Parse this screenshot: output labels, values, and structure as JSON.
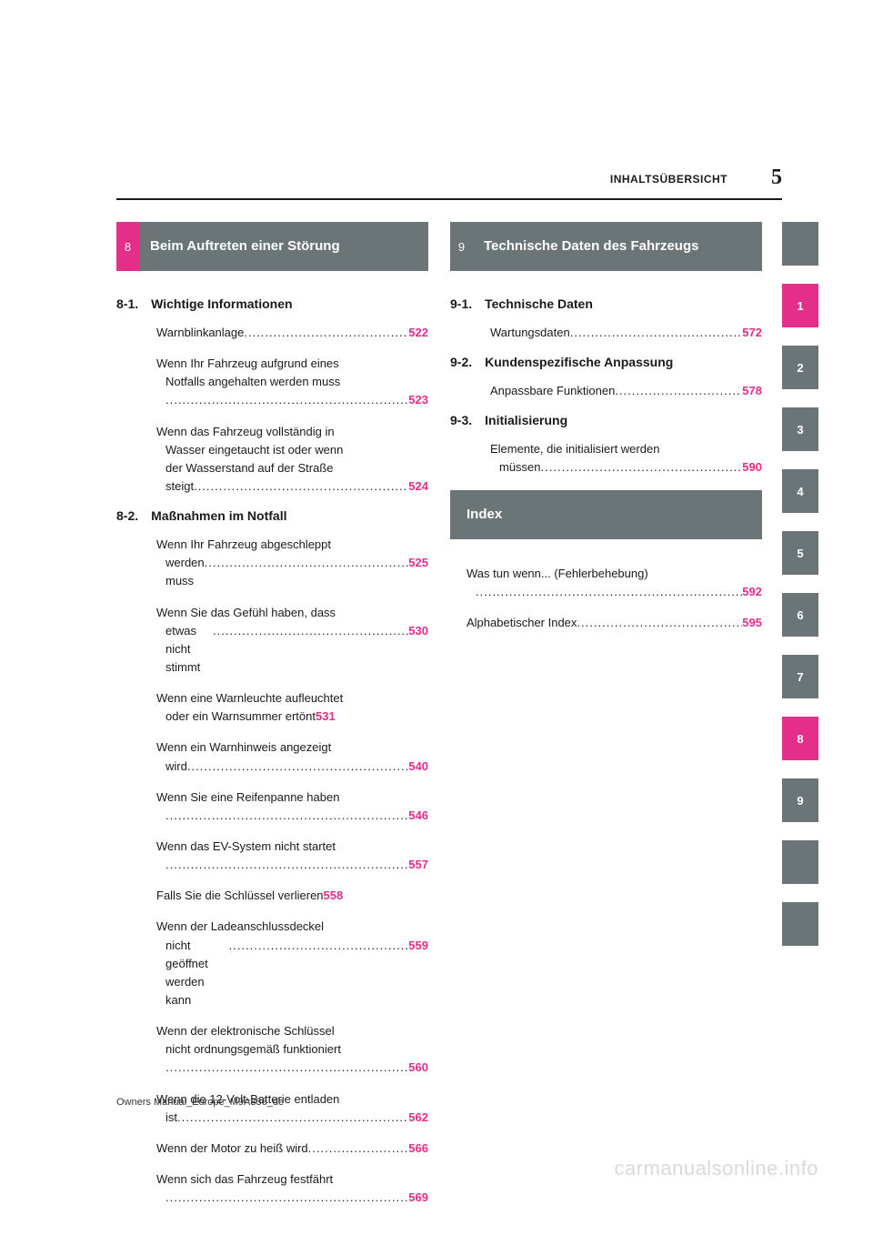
{
  "colors": {
    "accent": "#e52d8a",
    "grey": "#6b7476",
    "text": "#1a1a1a",
    "watermark": "#d9d9d9",
    "background": "#ffffff"
  },
  "header": {
    "title": "INHALTSÜBERSICHT",
    "page_number": "5"
  },
  "sections": [
    {
      "num": "8",
      "num_bg": "accent",
      "title": "Beim Auftreten einer Störung",
      "subsections": [
        {
          "num": "8-1.",
          "title": "Wichtige Informationen",
          "entries": [
            {
              "lines": [
                "Warnblinkanlage"
              ],
              "page": "522"
            },
            {
              "lines": [
                "Wenn Ihr Fahrzeug aufgrund eines",
                "Notfalls angehalten werden muss",
                ""
              ],
              "page": "523"
            },
            {
              "lines": [
                "Wenn das Fahrzeug vollständig in",
                "Wasser eingetaucht ist oder wenn",
                "der Wasserstand auf der Straße",
                "steigt"
              ],
              "page": "524"
            }
          ]
        },
        {
          "num": "8-2.",
          "title": "Maßnahmen im Notfall",
          "entries": [
            {
              "lines": [
                "Wenn Ihr Fahrzeug abgeschleppt",
                "werden muss"
              ],
              "page": "525"
            },
            {
              "lines": [
                "Wenn Sie das Gefühl haben, dass",
                "etwas nicht stimmt"
              ],
              "page": "530"
            },
            {
              "lines": [
                "Wenn eine Warnleuchte aufleuchtet",
                "oder ein Warnsummer ertönt"
              ],
              "page": "531",
              "tight": true
            },
            {
              "lines": [
                "Wenn ein Warnhinweis angezeigt",
                "wird"
              ],
              "page": "540"
            },
            {
              "lines": [
                "Wenn Sie eine Reifenpanne haben",
                ""
              ],
              "page": "546"
            },
            {
              "lines": [
                "Wenn das EV-System nicht startet",
                ""
              ],
              "page": "557"
            },
            {
              "lines": [
                "Falls Sie die Schlüssel verlieren"
              ],
              "page": "558",
              "tight": true
            },
            {
              "lines": [
                "Wenn der Ladeanschlussdeckel",
                "nicht geöffnet werden kann"
              ],
              "page": "559"
            },
            {
              "lines": [
                "Wenn der elektronische Schlüssel",
                "nicht ordnungsgemäß funktioniert",
                ""
              ],
              "page": "560"
            },
            {
              "lines": [
                "Wenn die 12-Volt-Batterie entladen",
                "ist"
              ],
              "page": "562"
            },
            {
              "lines": [
                "Wenn der Motor zu heiß wird"
              ],
              "page": "566"
            },
            {
              "lines": [
                "Wenn sich das Fahrzeug festfährt",
                ""
              ],
              "page": "569"
            }
          ]
        }
      ]
    },
    {
      "num": "9",
      "num_bg": "grey",
      "title": "Technische Daten des Fahrzeugs",
      "subsections": [
        {
          "num": "9-1.",
          "title": "Technische Daten",
          "entries": [
            {
              "lines": [
                "Wartungsdaten"
              ],
              "page": "572"
            }
          ]
        },
        {
          "num": "9-2.",
          "title": "Kundenspezifische Anpassung",
          "entries": [
            {
              "lines": [
                "Anpassbare Funktionen"
              ],
              "page": "578"
            }
          ]
        },
        {
          "num": "9-3.",
          "title": "Initialisierung",
          "entries": [
            {
              "lines": [
                "Elemente, die initialisiert werden",
                "müssen"
              ],
              "page": "590"
            }
          ]
        }
      ]
    }
  ],
  "index": {
    "title": "Index",
    "entries": [
      {
        "lines": [
          "Was tun wenn... (Fehlerbehebung)",
          ""
        ],
        "page": "592"
      },
      {
        "lines": [
          "Alphabetischer Index"
        ],
        "page": "595"
      }
    ]
  },
  "tabs": [
    {
      "label": "",
      "active": false
    },
    {
      "label": "1",
      "active": true
    },
    {
      "label": "2",
      "active": false
    },
    {
      "label": "3",
      "active": false
    },
    {
      "label": "4",
      "active": false
    },
    {
      "label": "5",
      "active": false
    },
    {
      "label": "6",
      "active": false
    },
    {
      "label": "7",
      "active": false
    },
    {
      "label": "8",
      "active": true
    },
    {
      "label": "9",
      "active": false
    },
    {
      "label": "",
      "active": false
    },
    {
      "label": "",
      "active": false
    }
  ],
  "footer": "Owners Manual_Europe_M9A336_de",
  "watermark": "carmanualsonline.info",
  "dot_fill": "................................................................................................"
}
